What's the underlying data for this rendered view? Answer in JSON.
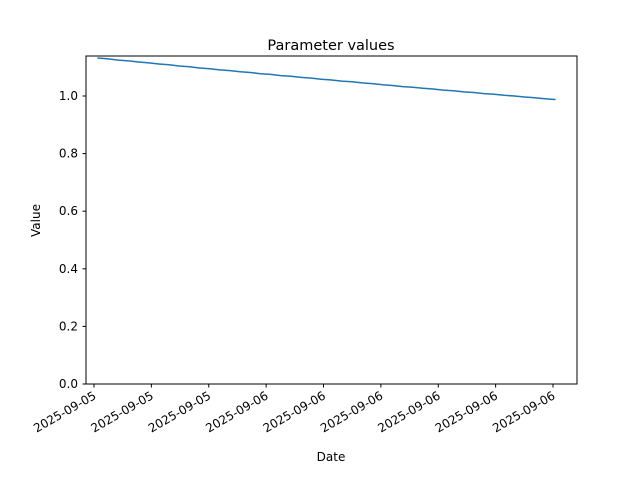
{
  "figure": {
    "background": "#ffffff",
    "spine_color": "#000000",
    "text_color": "#000000"
  },
  "chart_data": {
    "type": "line",
    "title": "Parameter values",
    "xlabel": "Date",
    "ylabel": "Value",
    "legend": "none",
    "grid": false,
    "x_tick_labels": [
      "2025-09-05",
      "2025-09-05",
      "2025-09-05",
      "2025-09-06",
      "2025-09-06",
      "2025-09-06",
      "2025-09-06",
      "2025-09-06",
      "2025-09-06"
    ],
    "x_tick_rotation_deg": 30,
    "y_ticks": [
      0.0,
      0.2,
      0.4,
      0.6,
      0.8,
      1.0
    ],
    "ylim": [
      0.0,
      1.1389
    ],
    "series": [
      {
        "name": "parameter-value",
        "color": "#1f77b4",
        "line_width": 1.5,
        "values": [
          1.132,
          1.1288,
          1.1248,
          1.1219,
          1.1179,
          1.1151,
          1.111,
          1.1083,
          1.1042,
          1.1015,
          1.0974,
          1.0948,
          1.0908,
          1.0881,
          1.0841,
          1.0815,
          1.0775,
          1.075,
          1.071,
          1.0685,
          1.0645,
          1.062,
          1.0581,
          1.0556,
          1.0517,
          1.0492,
          1.0454,
          1.0429,
          1.0391,
          1.0366,
          1.0328,
          1.0304,
          1.0266,
          1.0243,
          1.0205,
          1.0181,
          1.0144,
          1.0121,
          1.0084,
          1.0061,
          1.0024,
          1.0001,
          0.9964,
          0.9942,
          0.9905,
          0.988
        ]
      }
    ]
  }
}
